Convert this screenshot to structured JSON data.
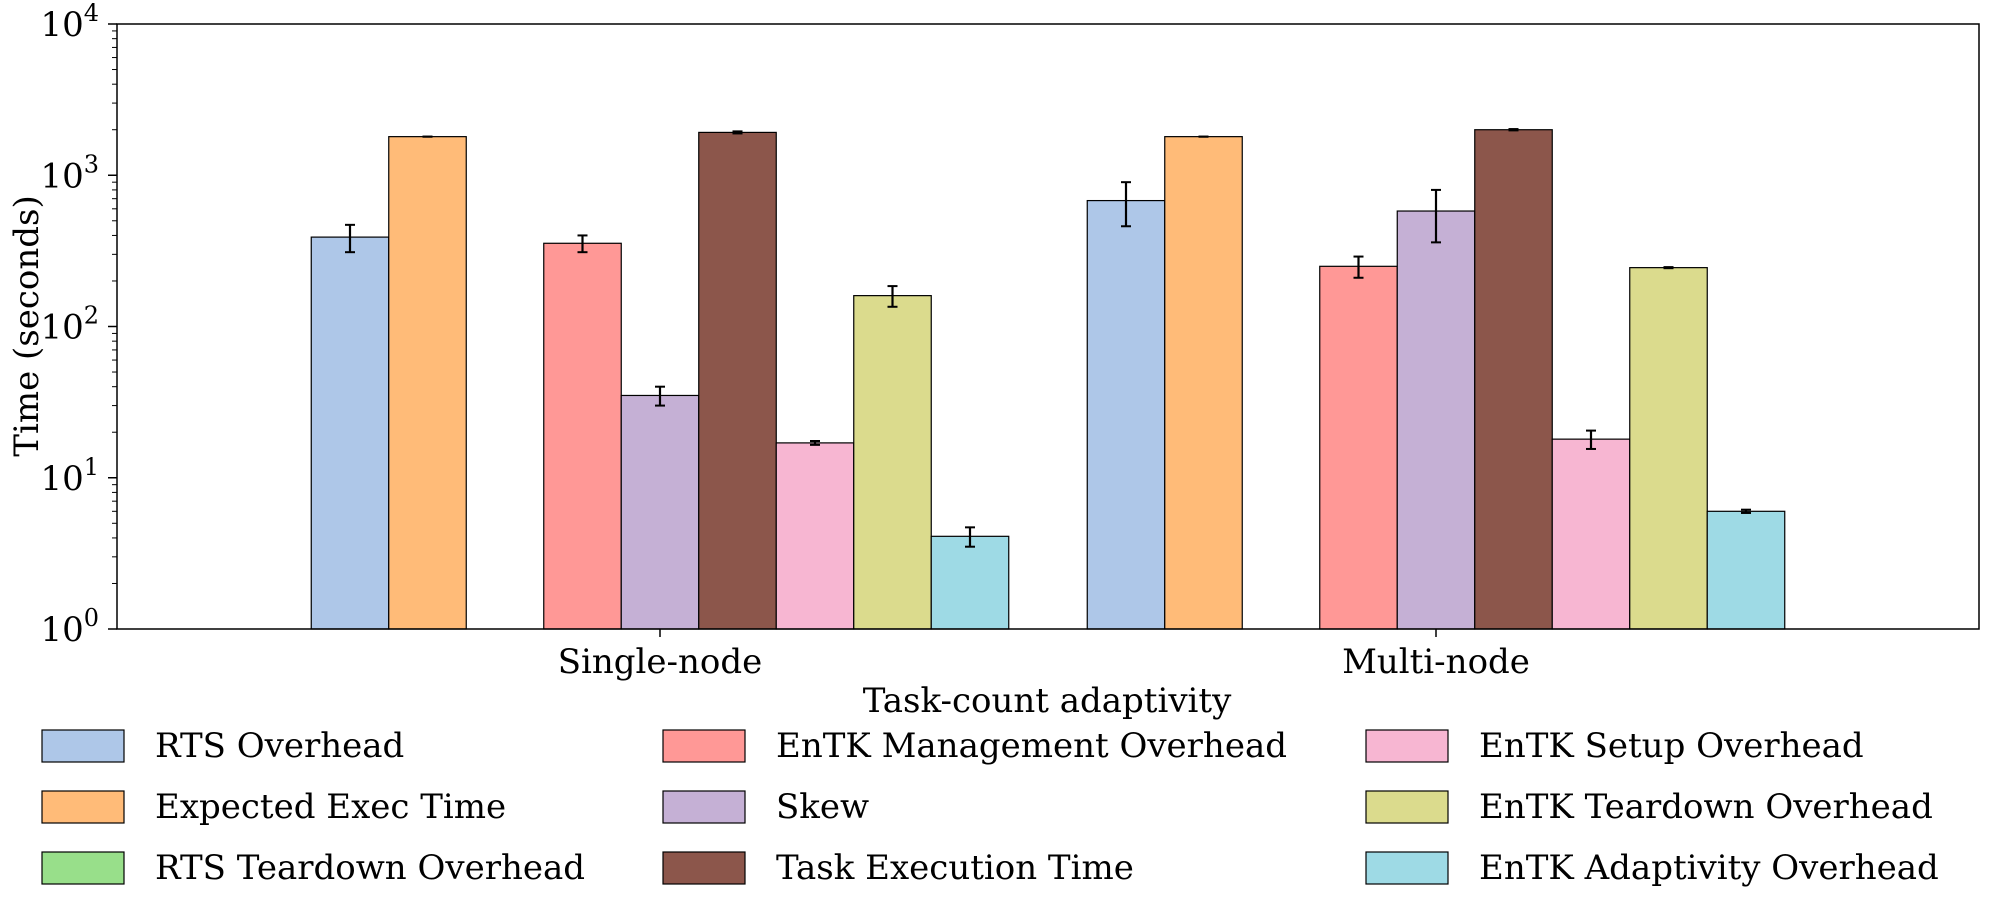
{
  "chart_data": {
    "type": "bar",
    "xlabel": "Task-count adaptivity",
    "ylabel": "Time (seconds)",
    "yscale": "log",
    "ylim": [
      1,
      10000
    ],
    "y_ticks": [
      {
        "base": "10",
        "exp": "0"
      },
      {
        "base": "10",
        "exp": "1"
      },
      {
        "base": "10",
        "exp": "2"
      },
      {
        "base": "10",
        "exp": "3"
      },
      {
        "base": "10",
        "exp": "4"
      }
    ],
    "categories": [
      "Single-node",
      "Multi-node"
    ],
    "legend_position": "below plot, three columns",
    "series": [
      {
        "name": "RTS Overhead",
        "color": "#aec7e8",
        "values": [
          390,
          680
        ],
        "errors": [
          80,
          220
        ]
      },
      {
        "name": "Expected Exec Time",
        "color": "#ffbb78",
        "values": [
          1800,
          1800
        ],
        "errors": [
          0,
          0
        ]
      },
      {
        "name": "RTS Teardown Overhead",
        "color": "#98df8a",
        "values": [
          null,
          null
        ],
        "errors": [
          null,
          null
        ]
      },
      {
        "name": "EnTK Management Overhead",
        "color": "#ff9896",
        "values": [
          355,
          250
        ],
        "errors": [
          45,
          40
        ]
      },
      {
        "name": "Skew",
        "color": "#c5b0d5",
        "values": [
          35,
          580
        ],
        "errors": [
          5,
          220
        ]
      },
      {
        "name": "Task Execution Time",
        "color": "#8c564b",
        "values": [
          1920,
          2000
        ],
        "errors": [
          30,
          20
        ]
      },
      {
        "name": "EnTK Setup Overhead",
        "color": "#f7b6d2",
        "values": [
          17,
          18
        ],
        "errors": [
          0.5,
          2.5
        ]
      },
      {
        "name": "EnTK Teardown Overhead",
        "color": "#dbdb8d",
        "values": [
          160,
          245
        ],
        "errors": [
          25,
          2
        ]
      },
      {
        "name": "EnTK Adaptivity Overhead",
        "color": "#9edae5",
        "values": [
          4.1,
          6.0
        ],
        "errors": [
          0.6,
          0.15
        ]
      }
    ]
  }
}
